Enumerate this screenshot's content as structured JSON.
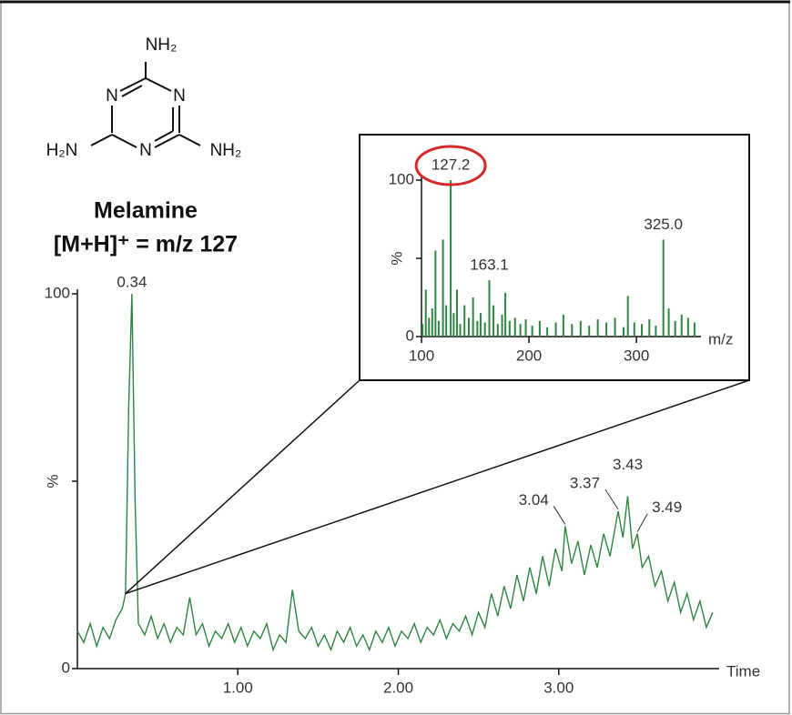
{
  "chart_data": [
    {
      "type": "line",
      "color": "#2e8540",
      "xlabel": "Time",
      "ylabel": "%",
      "xlim": [
        0,
        4
      ],
      "ylim": [
        0,
        100
      ],
      "xticks": [
        {
          "value": 1,
          "label": "1.00"
        },
        {
          "value": 2,
          "label": "2.00"
        },
        {
          "value": 3,
          "label": "3.00"
        }
      ],
      "yticks": [
        0,
        100
      ],
      "x": [
        0.0,
        0.04,
        0.08,
        0.12,
        0.16,
        0.2,
        0.24,
        0.28,
        0.3,
        0.32,
        0.34,
        0.36,
        0.38,
        0.42,
        0.46,
        0.5,
        0.54,
        0.58,
        0.62,
        0.66,
        0.7,
        0.74,
        0.78,
        0.82,
        0.86,
        0.9,
        0.94,
        0.98,
        1.02,
        1.06,
        1.1,
        1.14,
        1.18,
        1.22,
        1.26,
        1.3,
        1.34,
        1.38,
        1.42,
        1.46,
        1.5,
        1.54,
        1.58,
        1.62,
        1.66,
        1.7,
        1.74,
        1.78,
        1.82,
        1.86,
        1.9,
        1.94,
        1.98,
        2.02,
        2.06,
        2.1,
        2.14,
        2.18,
        2.22,
        2.26,
        2.3,
        2.34,
        2.38,
        2.42,
        2.46,
        2.5,
        2.54,
        2.58,
        2.62,
        2.66,
        2.7,
        2.74,
        2.78,
        2.82,
        2.86,
        2.9,
        2.94,
        2.98,
        3.02,
        3.04,
        3.08,
        3.12,
        3.16,
        3.2,
        3.24,
        3.28,
        3.32,
        3.37,
        3.4,
        3.43,
        3.46,
        3.49,
        3.52,
        3.56,
        3.6,
        3.64,
        3.68,
        3.72,
        3.76,
        3.8,
        3.84,
        3.88,
        3.92,
        3.96
      ],
      "values": [
        10,
        7,
        12,
        6,
        11,
        8,
        13,
        16,
        20,
        70,
        100,
        45,
        12,
        9,
        14,
        8,
        12,
        7,
        11,
        9,
        19,
        9,
        12,
        6,
        10,
        8,
        12,
        7,
        11,
        6,
        10,
        8,
        12,
        5,
        9,
        7,
        21,
        10,
        8,
        11,
        6,
        9,
        5,
        10,
        7,
        11,
        6,
        9,
        5,
        10,
        7,
        11,
        6,
        10,
        8,
        12,
        7,
        11,
        9,
        13,
        8,
        12,
        10,
        14,
        9,
        15,
        11,
        20,
        14,
        22,
        16,
        25,
        18,
        27,
        20,
        30,
        22,
        32,
        26,
        38,
        28,
        34,
        25,
        33,
        27,
        36,
        30,
        42,
        35,
        46,
        32,
        36,
        27,
        30,
        22,
        26,
        18,
        23,
        15,
        20,
        13,
        18,
        11,
        15
      ],
      "peaks": [
        0.34,
        3.04,
        3.37,
        3.43,
        3.49
      ]
    },
    {
      "type": "stem",
      "color": "#2e8540",
      "xlabel": "m/z",
      "ylabel": "%",
      "xlim": [
        100,
        360
      ],
      "ylim": [
        0,
        100
      ],
      "xticks": [
        100,
        200,
        300
      ],
      "yticks": [
        0,
        100
      ],
      "x": [
        101,
        104,
        107,
        110,
        113,
        116,
        120,
        123,
        127.2,
        130,
        133,
        136,
        140,
        144,
        148,
        152,
        155,
        159,
        163.1,
        167,
        171,
        175,
        178,
        182,
        187,
        192,
        197,
        203,
        210,
        217,
        225,
        232,
        240,
        248,
        256,
        264,
        272,
        280,
        288,
        292,
        298,
        305,
        312,
        318,
        325,
        330,
        336,
        342,
        348,
        354
      ],
      "values": [
        8,
        30,
        12,
        18,
        55,
        10,
        62,
        20,
        100,
        15,
        30,
        8,
        20,
        12,
        25,
        10,
        15,
        9,
        36,
        20,
        8,
        14,
        28,
        10,
        12,
        8,
        11,
        7,
        10,
        6,
        9,
        14,
        8,
        10,
        7,
        11,
        9,
        12,
        6,
        26,
        9,
        8,
        11,
        7,
        62,
        18,
        10,
        14,
        12,
        9
      ],
      "peaks": [
        {
          "value": 127.2,
          "label": "127.2"
        },
        {
          "value": 163.1,
          "label": "163.1"
        },
        {
          "value": 325,
          "label": "325.0"
        }
      ]
    }
  ],
  "structure": {
    "labels": [
      "NH₂",
      "N",
      "N",
      "N",
      "H₂N",
      "NH₂"
    ],
    "name": "Melamine",
    "ion": "[M+H]⁺ = m/z 127"
  }
}
